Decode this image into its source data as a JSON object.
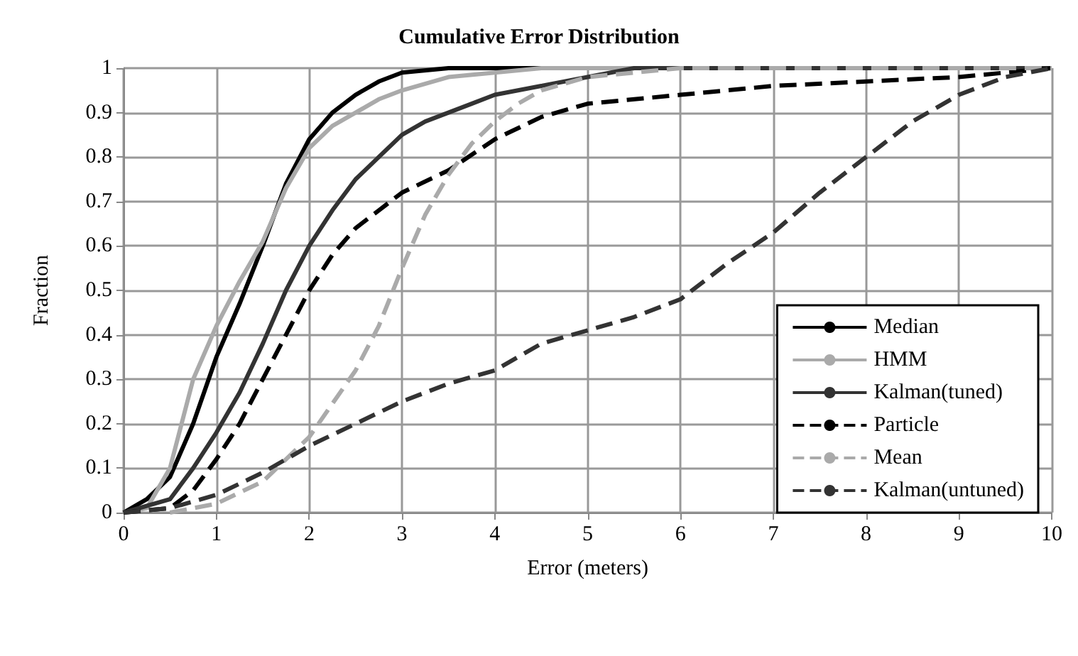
{
  "chart_data": {
    "type": "line",
    "title": "Cumulative Error Distribution",
    "xlabel": "Error (meters)",
    "ylabel": "Fraction",
    "xlim": [
      0,
      10
    ],
    "xticks": [
      0,
      1,
      2,
      3,
      4,
      5,
      6,
      7,
      8,
      9,
      10
    ],
    "ylim": [
      0,
      1
    ],
    "yticks": [
      0,
      0.1,
      0.2,
      0.3,
      0.4,
      0.5,
      0.6,
      0.7,
      0.8,
      0.9,
      1
    ],
    "grid": true,
    "legend": "bottom right",
    "marker": "none",
    "series": [
      {
        "name": "Median",
        "color": "#000000",
        "line_style": "solid",
        "x": [
          0,
          0.25,
          0.5,
          0.75,
          1,
          1.25,
          1.5,
          1.75,
          2,
          2.25,
          2.5,
          2.75,
          3,
          3.5,
          10
        ],
        "values": [
          0,
          0.03,
          0.08,
          0.2,
          0.35,
          0.47,
          0.6,
          0.74,
          0.84,
          0.9,
          0.94,
          0.97,
          0.99,
          1,
          1
        ]
      },
      {
        "name": "HMM",
        "color": "#aaaaaa",
        "line_style": "solid",
        "x": [
          0,
          0.25,
          0.5,
          0.75,
          1,
          1.25,
          1.5,
          1.75,
          2,
          2.25,
          2.5,
          2.75,
          3,
          3.5,
          4,
          4.5,
          10
        ],
        "values": [
          0,
          0.01,
          0.1,
          0.3,
          0.42,
          0.52,
          0.61,
          0.73,
          0.82,
          0.87,
          0.9,
          0.93,
          0.95,
          0.98,
          0.99,
          1,
          1
        ]
      },
      {
        "name": "Kalman(tuned)",
        "color": "#333333",
        "line_style": "solid",
        "x": [
          0,
          0.5,
          0.75,
          1,
          1.25,
          1.5,
          1.75,
          2,
          2.25,
          2.5,
          2.75,
          3,
          3.25,
          3.5,
          3.75,
          4,
          4.5,
          5,
          5.5,
          10
        ],
        "values": [
          0,
          0.03,
          0.1,
          0.18,
          0.27,
          0.38,
          0.5,
          0.6,
          0.68,
          0.75,
          0.8,
          0.85,
          0.88,
          0.9,
          0.92,
          0.94,
          0.96,
          0.98,
          1,
          1
        ]
      },
      {
        "name": "Particle",
        "color": "#000000",
        "line_style": "dashed",
        "x": [
          0,
          0.5,
          0.75,
          1,
          1.25,
          1.5,
          1.75,
          2,
          2.25,
          2.5,
          2.75,
          3,
          3.5,
          4,
          4.5,
          5,
          6,
          7,
          8,
          9,
          9.5,
          10
        ],
        "values": [
          0,
          0.01,
          0.05,
          0.12,
          0.2,
          0.3,
          0.4,
          0.5,
          0.58,
          0.64,
          0.68,
          0.72,
          0.77,
          0.84,
          0.89,
          0.92,
          0.94,
          0.96,
          0.97,
          0.98,
          0.99,
          1
        ]
      },
      {
        "name": "Mean",
        "color": "#aaaaaa",
        "line_style": "dashed",
        "x": [
          0.5,
          1,
          1.5,
          2,
          2.5,
          2.75,
          3,
          3.25,
          3.5,
          3.75,
          4,
          4.25,
          4.5,
          5,
          5.5,
          6,
          10
        ],
        "values": [
          0,
          0.02,
          0.07,
          0.17,
          0.32,
          0.42,
          0.55,
          0.67,
          0.76,
          0.83,
          0.88,
          0.92,
          0.95,
          0.98,
          0.99,
          1,
          1
        ]
      },
      {
        "name": "Kalman(untuned)",
        "color": "#333333",
        "line_style": "dashed",
        "x": [
          0,
          0.5,
          1,
          1.5,
          2,
          2.5,
          3,
          3.5,
          4,
          4.5,
          5,
          5.5,
          6,
          6.5,
          7,
          7.5,
          8,
          8.5,
          9,
          9.5,
          10
        ],
        "values": [
          0,
          0.01,
          0.04,
          0.09,
          0.15,
          0.2,
          0.25,
          0.29,
          0.32,
          0.38,
          0.41,
          0.44,
          0.48,
          0.56,
          0.63,
          0.72,
          0.8,
          0.88,
          0.94,
          0.98,
          1
        ]
      }
    ]
  }
}
